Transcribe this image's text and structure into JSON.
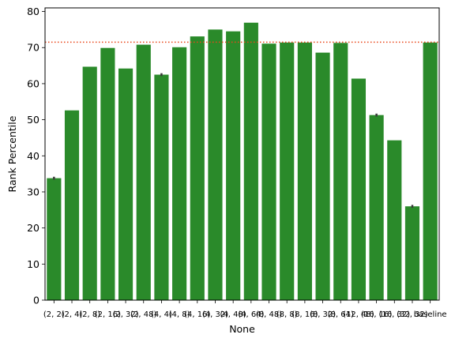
{
  "chart_data": {
    "type": "bar",
    "xlabel": "None",
    "ylabel": "Rank Percentile",
    "ylim": [
      0,
      81
    ],
    "yticks": [
      0,
      10,
      20,
      30,
      40,
      50,
      60,
      70,
      80
    ],
    "grid": false,
    "categories": [
      "(2, 2)",
      "(2, 4)",
      "(2, 8)",
      "(2, 16)",
      "(2, 32)",
      "(2, 48)",
      "(4, 4)",
      "(4, 8)",
      "(4, 16)",
      "(4, 32)",
      "(4, 48)",
      "(4, 64)",
      "(8, 48)",
      "(8, 8)",
      "(8, 16)",
      "(8, 32)",
      "(8, 64)",
      "(12, 48)",
      "(16, 16)",
      "(16, 32)",
      "(32, 32)",
      "baseline"
    ],
    "values": [
      33.8,
      52.6,
      64.7,
      69.9,
      64.2,
      70.8,
      62.5,
      70.1,
      73.1,
      75.0,
      74.5,
      76.9,
      71.1,
      71.4,
      71.4,
      68.6,
      71.3,
      61.4,
      51.3,
      44.3,
      26.0,
      71.4
    ],
    "error": [
      0.4,
      0.0,
      0.0,
      0.0,
      0.0,
      0.0,
      0.4,
      0.0,
      0.0,
      0.0,
      0.0,
      0.0,
      0.0,
      0.0,
      0.0,
      0.0,
      0.0,
      0.0,
      0.4,
      0.0,
      0.4,
      0.0
    ],
    "bar_color": "#2a8a2a",
    "reference_line": {
      "value": 71.5,
      "color": "#e8461a",
      "style": "dotted"
    }
  }
}
